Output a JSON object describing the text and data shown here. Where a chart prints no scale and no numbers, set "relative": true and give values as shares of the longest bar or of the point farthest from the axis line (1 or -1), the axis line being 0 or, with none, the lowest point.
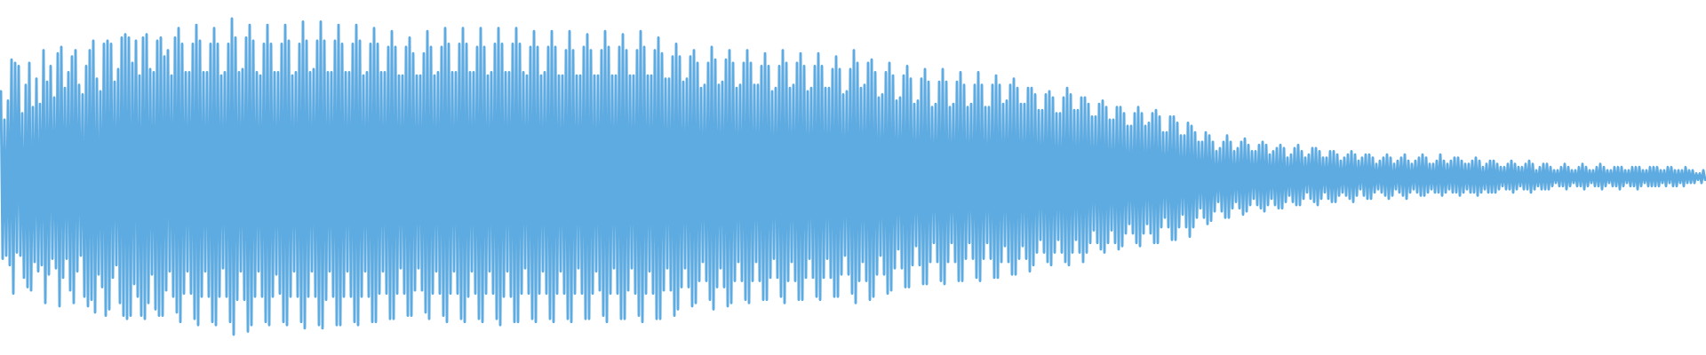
{
  "chart_data": {
    "type": "line",
    "relative": true,
    "color": "#5eabe1",
    "categories": [
      null,
      null,
      null,
      null,
      null,
      null,
      null,
      null,
      null,
      null,
      null,
      null,
      null,
      null,
      null,
      null,
      null,
      null,
      null,
      null,
      null,
      null,
      null,
      null,
      null,
      null,
      null,
      null,
      null,
      null,
      null,
      null,
      null,
      null,
      null,
      null,
      null,
      null,
      null,
      null,
      null,
      null,
      null,
      null,
      null,
      null,
      null,
      null,
      null,
      null,
      null,
      null,
      null,
      null,
      null,
      null,
      null,
      null,
      null,
      null,
      null,
      null,
      null,
      null,
      null,
      null,
      null,
      null,
      null,
      null,
      null,
      null,
      null,
      null,
      null,
      null,
      null,
      null,
      null,
      null,
      null,
      null,
      null,
      null,
      null,
      null,
      null,
      null,
      null,
      null,
      null,
      null,
      null,
      null,
      null,
      null,
      null,
      null,
      null,
      null,
      null,
      null,
      null,
      null,
      null,
      null,
      null,
      null,
      null,
      null,
      null,
      null,
      null,
      null,
      null,
      null,
      null,
      null,
      null,
      null,
      null,
      null,
      null,
      null,
      null,
      null,
      null,
      null,
      null,
      null,
      null,
      null,
      null,
      null,
      null,
      null,
      null,
      null,
      null,
      null,
      null,
      null,
      null,
      null,
      null,
      null,
      null,
      null,
      null,
      null,
      null,
      null,
      null,
      null,
      null,
      null,
      null,
      null,
      null,
      null,
      null,
      null,
      null,
      null,
      null,
      null,
      null,
      null,
      null,
      null,
      null,
      null,
      null,
      null,
      null,
      null,
      null,
      null,
      null,
      null,
      null,
      null,
      null,
      null,
      null,
      null,
      null,
      null,
      null,
      null,
      null,
      null,
      null,
      null,
      null,
      null,
      null,
      null,
      null,
      null,
      null,
      null,
      null,
      null,
      null,
      null,
      null,
      null,
      null,
      null,
      null,
      null,
      null,
      null,
      null,
      null,
      null,
      null,
      null,
      null,
      null,
      null,
      null,
      null,
      null,
      null,
      null,
      null,
      null,
      null,
      null,
      null,
      null,
      null,
      null,
      null,
      null,
      null,
      null,
      null,
      null,
      null,
      null,
      null,
      null,
      null,
      null,
      null,
      null,
      null,
      null,
      null,
      null,
      null,
      null,
      null,
      null,
      null,
      null,
      null,
      null,
      null,
      null,
      null,
      null,
      null,
      null,
      null,
      null,
      null,
      null,
      null,
      null,
      null,
      null,
      null,
      null,
      null,
      null,
      null,
      null,
      null,
      null,
      null,
      null,
      null,
      null,
      null,
      null,
      null,
      null,
      null,
      null,
      null,
      null,
      null,
      null,
      null,
      null,
      null,
      null,
      null,
      null,
      null,
      null,
      null,
      null,
      null,
      null,
      null,
      null,
      null,
      null,
      null,
      null,
      null,
      null,
      null,
      null,
      null,
      null,
      null,
      null,
      null,
      null,
      null,
      null,
      null,
      null,
      null,
      null,
      null,
      null,
      null,
      null,
      null,
      null,
      null,
      null,
      null,
      null,
      null,
      null,
      null,
      null,
      null,
      null,
      null,
      null,
      null,
      null,
      null,
      null,
      null,
      null,
      null,
      null,
      null,
      null,
      null,
      null,
      null,
      null,
      null,
      null,
      null,
      null,
      null,
      null,
      null,
      null,
      null,
      null,
      null,
      null,
      null,
      null,
      null,
      null,
      null,
      null,
      null,
      null,
      null,
      null,
      null,
      null,
      null,
      null,
      null,
      null,
      null,
      null,
      null,
      null,
      null,
      null,
      null,
      null,
      null,
      null,
      null,
      null,
      null,
      null,
      null,
      null,
      null,
      null,
      null,
      null,
      null,
      null,
      null,
      null,
      null,
      null,
      null,
      null,
      null,
      null,
      null,
      null,
      null,
      null,
      null,
      null,
      null,
      null,
      null,
      null,
      null,
      null,
      null,
      null,
      null,
      null,
      null,
      null,
      null,
      null,
      null,
      null,
      null,
      null,
      null,
      null,
      null,
      null,
      null,
      null,
      null,
      null,
      null,
      null,
      null,
      null,
      null,
      null,
      null,
      null,
      null,
      null,
      null,
      null,
      null,
      null,
      null,
      null,
      null,
      null,
      null,
      null,
      null,
      null,
      null,
      null,
      null,
      null,
      null,
      null,
      null,
      null,
      null,
      null,
      null,
      null,
      null,
      null,
      null,
      null,
      null,
      null,
      null,
      null,
      null,
      null,
      null,
      null,
      null,
      null,
      null,
      null,
      null,
      null,
      null,
      null,
      null,
      null,
      null,
      null,
      null,
      null,
      null,
      null,
      null,
      null,
      null,
      null,
      null,
      null,
      null,
      null,
      null,
      null,
      null,
      null,
      null,
      null,
      null,
      null,
      null,
      null,
      null,
      null,
      null,
      null,
      null,
      null,
      null,
      null,
      null,
      null,
      null,
      null,
      null,
      null,
      null,
      null,
      null,
      null,
      null,
      null,
      null,
      null,
      null,
      null,
      null,
      null,
      null,
      null,
      null,
      null,
      null,
      null,
      null,
      null,
      null,
      null,
      null,
      null,
      null,
      null,
      null,
      null,
      null,
      null,
      null,
      null,
      null,
      null,
      null,
      null,
      null,
      null,
      null,
      null,
      null,
      null,
      null,
      null,
      null,
      null,
      null,
      null,
      null,
      null,
      null,
      null,
      null,
      null,
      null,
      null,
      null,
      null,
      null,
      null,
      null,
      null,
      null,
      null,
      null,
      null,
      null,
      null,
      null,
      null,
      null,
      null,
      null,
      null,
      null,
      null,
      null,
      null,
      null,
      null,
      null,
      null,
      null,
      null,
      null,
      null,
      null,
      null,
      null,
      null,
      null,
      null,
      null,
      null,
      null,
      null,
      null,
      null,
      null,
      null,
      null,
      null,
      null,
      null,
      null,
      null,
      null,
      null,
      null,
      null,
      null,
      null,
      null,
      null,
      null,
      null,
      null,
      null,
      null,
      null,
      null,
      null,
      null,
      null,
      null,
      null,
      null,
      null,
      null,
      null,
      null,
      null,
      null,
      null,
      null,
      null,
      null,
      null,
      null,
      null,
      null,
      null,
      null,
      null,
      null,
      null,
      null,
      null,
      null,
      null,
      null,
      null,
      null,
      null,
      null,
      null,
      null,
      null,
      null,
      null,
      null,
      null,
      null,
      null,
      null,
      null,
      null,
      null,
      null,
      null,
      null,
      null,
      null,
      null,
      null,
      null,
      null,
      null,
      null,
      null,
      null,
      null,
      null,
      null,
      null,
      null,
      null,
      null,
      null,
      null,
      null,
      null,
      null,
      null,
      null,
      null,
      null,
      null,
      null,
      null,
      null,
      null,
      null,
      null,
      null,
      null,
      null,
      null,
      null,
      null,
      null,
      null,
      null,
      null,
      null,
      null,
      null,
      null,
      null,
      null,
      null,
      null,
      null,
      null,
      null,
      null,
      null,
      null,
      null,
      null,
      null,
      null,
      null,
      null,
      null,
      null,
      null,
      null,
      null,
      null,
      null,
      null,
      null,
      null,
      null,
      null,
      null,
      null,
      null,
      null,
      null,
      null,
      null,
      null,
      null,
      null,
      null,
      null,
      null,
      null,
      null,
      null,
      null,
      null,
      null,
      null,
      null,
      null,
      null,
      null,
      null,
      null,
      null,
      null,
      null,
      null,
      null,
      null,
      null,
      null,
      null,
      null,
      null,
      null,
      null,
      null,
      null,
      null,
      null,
      null,
      null,
      null,
      null,
      null,
      null,
      null,
      null,
      null,
      null,
      null,
      null,
      null,
      null,
      null,
      null,
      null,
      null,
      null,
      null,
      null,
      null,
      null,
      null,
      null,
      null,
      null,
      null,
      null,
      null,
      null,
      null,
      null,
      null,
      null,
      null,
      null,
      null,
      null,
      null,
      null,
      null,
      null,
      null,
      null,
      null,
      null,
      null,
      null,
      null,
      null,
      null,
      null,
      null,
      null,
      null,
      null,
      null,
      null,
      null,
      null,
      null,
      null,
      null,
      null,
      null,
      null,
      null,
      null,
      null,
      null,
      null,
      null,
      null,
      null,
      null,
      null,
      null,
      null,
      null,
      null,
      null,
      null,
      null,
      null,
      null,
      null,
      null,
      null,
      null,
      null,
      null,
      null,
      null,
      null,
      null,
      null,
      null,
      null,
      null,
      null,
      null,
      null,
      null,
      null,
      null,
      null,
      null,
      null,
      null,
      null,
      null,
      null,
      null,
      null,
      null,
      null,
      null,
      null,
      null,
      null,
      null,
      null,
      null
    ],
    "values": [
      0.77,
      0.24,
      0.68,
      0.25,
      0.74,
      0.22,
      0.87,
      0.13,
      0.86,
      0.26,
      0.85,
      0.25,
      0.7,
      0.18,
      0.79,
      0.15,
      0.86,
      0.14,
      0.72,
      0.23,
      0.81,
      0.2,
      0.73,
      0.22,
      0.9,
      0.1,
      0.8,
      0.19,
      0.85,
      0.24,
      0.75,
      0.21,
      0.89,
      0.09,
      0.91,
      0.18,
      0.78,
      0.24,
      0.83,
      0.14,
      0.88,
      0.1,
      0.9,
      0.2,
      0.79,
      0.25,
      0.76,
      0.12,
      0.85,
      0.09,
      0.9,
      0.11,
      0.93,
      0.07,
      0.81,
      0.19,
      0.77,
      0.15,
      0.92,
      0.06,
      0.93,
      0.08,
      0.92,
      0.18,
      0.8,
      0.22,
      0.84,
      0.1,
      0.94,
      0.06,
      0.95,
      0.05,
      0.94,
      0.06,
      0.86,
      0.16,
      0.93,
      0.12,
      0.82,
      0.06,
      0.94,
      0.05,
      0.95,
      0.1,
      0.84,
      0.19,
      0.83,
      0.08,
      0.93,
      0.06,
      0.94,
      0.06,
      0.88,
      0.14,
      0.9,
      0.2,
      0.82,
      0.12,
      0.94,
      0.07,
      0.97,
      0.04,
      0.92,
      0.13,
      0.83,
      0.2,
      0.83,
      0.13,
      0.92,
      0.05,
      0.98,
      0.03,
      0.93,
      0.12,
      0.83,
      0.2,
      0.83,
      0.12,
      0.92,
      0.04,
      0.97,
      0.03,
      0.92,
      0.12,
      0.82,
      0.21,
      0.83,
      0.12,
      0.92,
      0.04,
      1,
      0,
      0.94,
      0.11,
      0.83,
      0.2,
      0.84,
      0.11,
      0.94,
      0.01,
      0.98,
      0.03,
      0.93,
      0.12,
      0.83,
      0.2,
      0.82,
      0.12,
      0.92,
      0.04,
      0.98,
      0.03,
      0.92,
      0.12,
      0.83,
      0.19,
      0.83,
      0.13,
      0.92,
      0.04,
      0.98,
      0.03,
      0.93,
      0.12,
      0.82,
      0.2,
      0.83,
      0.12,
      0.92,
      0.04,
      0.99,
      0.02,
      0.93,
      0.12,
      0.83,
      0.2,
      0.84,
      0.12,
      0.93,
      0.03,
      0.99,
      0.02,
      0.93,
      0.11,
      0.83,
      0.2,
      0.83,
      0.12,
      0.93,
      0.03,
      0.98,
      0.03,
      0.92,
      0.12,
      0.83,
      0.2,
      0.83,
      0.12,
      0.92,
      0.04,
      0.98,
      0.03,
      0.93,
      0.12,
      0.82,
      0.2,
      0.83,
      0.12,
      0.92,
      0.04,
      0.97,
      0.04,
      0.92,
      0.13,
      0.83,
      0.2,
      0.83,
      0.13,
      0.91,
      0.05,
      0.96,
      0.05,
      0.91,
      0.13,
      0.82,
      0.21,
      0.82,
      0.13,
      0.91,
      0.06,
      0.94,
      0.06,
      0.89,
      0.14,
      0.82,
      0.21,
      0.82,
      0.14,
      0.89,
      0.07,
      0.96,
      0.05,
      0.91,
      0.13,
      0.82,
      0.2,
      0.83,
      0.13,
      0.91,
      0.06,
      0.97,
      0.04,
      0.92,
      0.13,
      0.83,
      0.2,
      0.83,
      0.13,
      0.92,
      0.05,
      0.97,
      0.04,
      0.92,
      0.12,
      0.83,
      0.2,
      0.83,
      0.13,
      0.91,
      0.05,
      0.97,
      0.04,
      0.91,
      0.13,
      0.82,
      0.2,
      0.83,
      0.13,
      0.92,
      0.05,
      0.97,
      0.03,
      0.92,
      0.12,
      0.83,
      0.2,
      0.83,
      0.12,
      0.92,
      0.04,
      0.97,
      0.04,
      0.92,
      0.13,
      0.83,
      0.21,
      0.82,
      0.13,
      0.91,
      0.05,
      0.96,
      0.04,
      0.91,
      0.13,
      0.82,
      0.2,
      0.83,
      0.13,
      0.91,
      0.05,
      0.96,
      0.04,
      0.91,
      0.13,
      0.82,
      0.2,
      0.82,
      0.13,
      0.9,
      0.05,
      0.96,
      0.04,
      0.9,
      0.13,
      0.82,
      0.21,
      0.82,
      0.13,
      0.91,
      0.05,
      0.95,
      0.05,
      0.9,
      0.13,
      0.82,
      0.2,
      0.82,
      0.14,
      0.9,
      0.06,
      0.96,
      0.04,
      0.91,
      0.13,
      0.82,
      0.21,
      0.82,
      0.13,
      0.91,
      0.05,
      0.95,
      0.05,
      0.9,
      0.14,
      0.82,
      0.21,
      0.82,
      0.13,
      0.9,
      0.06,
      0.96,
      0.04,
      0.91,
      0.13,
      0.82,
      0.2,
      0.82,
      0.13,
      0.9,
      0.05,
      0.94,
      0.05,
      0.89,
      0.14,
      0.81,
      0.21,
      0.81,
      0.14,
      0.88,
      0.06,
      0.92,
      0.08,
      0.88,
      0.15,
      0.8,
      0.21,
      0.81,
      0.15,
      0.88,
      0.09,
      0.9,
      0.1,
      0.86,
      0.17,
      0.78,
      0.23,
      0.79,
      0.17,
      0.86,
      0.11,
      0.91,
      0.08,
      0.87,
      0.15,
      0.79,
      0.21,
      0.8,
      0.15,
      0.87,
      0.09,
      0.9,
      0.1,
      0.86,
      0.17,
      0.78,
      0.23,
      0.79,
      0.17,
      0.86,
      0.11,
      0.9,
      0.1,
      0.86,
      0.17,
      0.79,
      0.23,
      0.79,
      0.17,
      0.85,
      0.11,
      0.89,
      0.11,
      0.85,
      0.18,
      0.77,
      0.24,
      0.78,
      0.18,
      0.85,
      0.12,
      0.9,
      0.1,
      0.86,
      0.17,
      0.78,
      0.23,
      0.79,
      0.17,
      0.86,
      0.11,
      0.89,
      0.11,
      0.85,
      0.18,
      0.77,
      0.24,
      0.78,
      0.18,
      0.85,
      0.12,
      0.89,
      0.11,
      0.85,
      0.18,
      0.78,
      0.24,
      0.78,
      0.18,
      0.84,
      0.12,
      0.88,
      0.12,
      0.84,
      0.19,
      0.76,
      0.25,
      0.77,
      0.19,
      0.84,
      0.13,
      0.9,
      0.1,
      0.86,
      0.17,
      0.78,
      0.23,
      0.79,
      0.17,
      0.86,
      0.11,
      0.87,
      0.12,
      0.83,
      0.19,
      0.75,
      0.25,
      0.76,
      0.19,
      0.83,
      0.13,
      0.86,
      0.14,
      0.82,
      0.21,
      0.74,
      0.27,
      0.75,
      0.21,
      0.82,
      0.15,
      0.85,
      0.15,
      0.81,
      0.22,
      0.73,
      0.28,
      0.74,
      0.22,
      0.81,
      0.16,
      0.84,
      0.16,
      0.8,
      0.23,
      0.72,
      0.29,
      0.73,
      0.23,
      0.8,
      0.17,
      0.84,
      0.16,
      0.8,
      0.23,
      0.72,
      0.29,
      0.73,
      0.23,
      0.8,
      0.17,
      0.83,
      0.17,
      0.79,
      0.24,
      0.72,
      0.29,
      0.73,
      0.24,
      0.79,
      0.18,
      0.83,
      0.17,
      0.79,
      0.24,
      0.72,
      0.29,
      0.72,
      0.24,
      0.79,
      0.18,
      0.82,
      0.18,
      0.79,
      0.23,
      0.73,
      0.28,
      0.74,
      0.23,
      0.79,
      0.19,
      0.81,
      0.19,
      0.78,
      0.24,
      0.73,
      0.28,
      0.73,
      0.24,
      0.78,
      0.2,
      0.78,
      0.22,
      0.76,
      0.26,
      0.71,
      0.3,
      0.71,
      0.26,
      0.76,
      0.23,
      0.77,
      0.22,
      0.75,
      0.26,
      0.7,
      0.3,
      0.7,
      0.26,
      0.75,
      0.23,
      0.78,
      0.22,
      0.76,
      0.26,
      0.71,
      0.3,
      0.71,
      0.26,
      0.75,
      0.23,
      0.75,
      0.26,
      0.73,
      0.29,
      0.69,
      0.33,
      0.69,
      0.29,
      0.73,
      0.27,
      0.74,
      0.26,
      0.72,
      0.29,
      0.68,
      0.33,
      0.68,
      0.29,
      0.72,
      0.27,
      0.72,
      0.28,
      0.7,
      0.32,
      0.66,
      0.35,
      0.66,
      0.32,
      0.7,
      0.29,
      0.72,
      0.28,
      0.7,
      0.32,
      0.66,
      0.35,
      0.67,
      0.32,
      0.7,
      0.29,
      0.71,
      0.29,
      0.69,
      0.34,
      0.64,
      0.37,
      0.64,
      0.34,
      0.69,
      0.3,
      0.69,
      0.3,
      0.67,
      0.34,
      0.63,
      0.38,
      0.63,
      0.34,
      0.67,
      0.31,
      0.66,
      0.34,
      0.64,
      0.37,
      0.61,
      0.4,
      0.61,
      0.37,
      0.64,
      0.35,
      0.63,
      0.36,
      0.61,
      0.39,
      0.58,
      0.42,
      0.59,
      0.39,
      0.61,
      0.37,
      0.63,
      0.37,
      0.61,
      0.4,
      0.58,
      0.42,
      0.59,
      0.4,
      0.61,
      0.38,
      0.62,
      0.39,
      0.6,
      0.41,
      0.58,
      0.43,
      0.58,
      0.41,
      0.6,
      0.4,
      0.61,
      0.39,
      0.6,
      0.41,
      0.57,
      0.43,
      0.58,
      0.41,
      0.59,
      0.4,
      0.6,
      0.4,
      0.59,
      0.42,
      0.56,
      0.44,
      0.57,
      0.42,
      0.59,
      0.41,
      0.6,
      0.41,
      0.58,
      0.43,
      0.56,
      0.45,
      0.57,
      0.43,
      0.59,
      0.42,
      0.59,
      0.41,
      0.58,
      0.43,
      0.56,
      0.45,
      0.56,
      0.43,
      0.58,
      0.42,
      0.58,
      0.42,
      0.57,
      0.44,
      0.55,
      0.45,
      0.56,
      0.44,
      0.57,
      0.43,
      0.58,
      0.42,
      0.57,
      0.44,
      0.55,
      0.46,
      0.56,
      0.44,
      0.57,
      0.43,
      0.57,
      0.43,
      0.56,
      0.45,
      0.54,
      0.46,
      0.55,
      0.45,
      0.56,
      0.44,
      0.57,
      0.43,
      0.56,
      0.44,
      0.54,
      0.46,
      0.55,
      0.45,
      0.56,
      0.44,
      0.57,
      0.43,
      0.55,
      0.45,
      0.54,
      0.46,
      0.55,
      0.45,
      0.56,
      0.44,
      0.57,
      0.44,
      0.56,
      0.45,
      0.54,
      0.46,
      0.54,
      0.45,
      0.55,
      0.45,
      0.57,
      0.44,
      0.55,
      0.45,
      0.54,
      0.46,
      0.55,
      0.45,
      0.56,
      0.45,
      0.56,
      0.44,
      0.55,
      0.45,
      0.54,
      0.46,
      0.54,
      0.45,
      0.55,
      0.45,
      0.56,
      0.44,
      0.55,
      0.45,
      0.53,
      0.46,
      0.54,
      0.45,
      0.55,
      0.45,
      0.55,
      0.45,
      0.54,
      0.46,
      0.53,
      0.47,
      0.53,
      0.46,
      0.54,
      0.46,
      0.55,
      0.45,
      0.54,
      0.46,
      0.53,
      0.47,
      0.53,
      0.46,
      0.54,
      0.46,
      0.55,
      0.45,
      0.54,
      0.46,
      0.52,
      0.47,
      0.53,
      0.46,
      0.54,
      0.46,
      0.54,
      0.46,
      0.53,
      0.47,
      0.52,
      0.48,
      0.52,
      0.47,
      0.53,
      0.47,
      0.54,
      0.46,
      0.53,
      0.47,
      0.52,
      0.48,
      0.52,
      0.47,
      0.53,
      0.47,
      0.54,
      0.46,
      0.53,
      0.47,
      0.52,
      0.48,
      0.52,
      0.47,
      0.53,
      0.47,
      0.54,
      0.46,
      0.53,
      0.47,
      0.52,
      0.48,
      0.52,
      0.47,
      0.53,
      0.47,
      0.53,
      0.46,
      0.53,
      0.47,
      0.52,
      0.48,
      0.52,
      0.47,
      0.53,
      0.47,
      0.53,
      0.46,
      0.53,
      0.47,
      0.52,
      0.48,
      0.52,
      0.47,
      0.53,
      0.47,
      0.53,
      0.47,
      0.53,
      0.47,
      0.52,
      0.48,
      0.52,
      0.47,
      0.53,
      0.48,
      0.53,
      0.47,
      0.52,
      0.47,
      0.52,
      0.48,
      0.52,
      0.47,
      0.53,
      0.48,
      0.52,
      0.48,
      0.52,
      0.48,
      0.51,
      0.49,
      0.51,
      0.48,
      0.52,
      0.49
    ]
  }
}
